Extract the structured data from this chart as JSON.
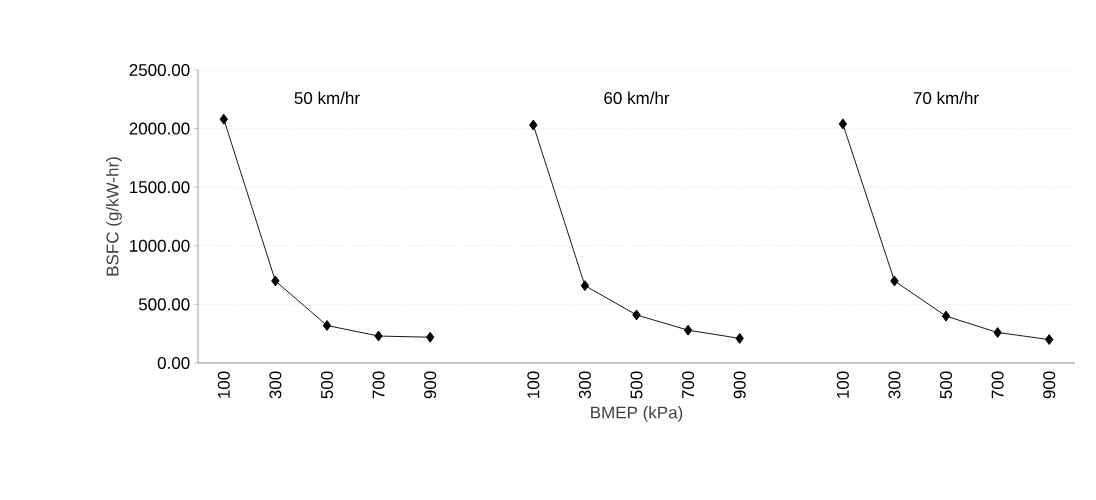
{
  "chart_data": {
    "type": "line",
    "xlabel": "BMEP (kPa)",
    "ylabel": "BSFC (g/kW-hr)",
    "categories": [
      "100",
      "300",
      "500",
      "700",
      "900",
      null,
      "100",
      "300",
      "500",
      "700",
      "900",
      null,
      "100",
      "300",
      "500",
      "700",
      "900"
    ],
    "series": [
      {
        "color": "#000000",
        "values": [
          2080,
          700,
          320,
          230,
          220,
          null,
          2030,
          660,
          410,
          280,
          210,
          null,
          2040,
          700,
          400,
          260,
          200
        ]
      }
    ],
    "ylim": [
      0,
      2500
    ],
    "yticks": [
      {
        "value": 0,
        "label": "0.00"
      },
      {
        "value": 500,
        "label": "500.00"
      },
      {
        "value": 1000,
        "label": "1000.00"
      },
      {
        "value": 1500,
        "label": "1500.00"
      },
      {
        "value": 2000,
        "label": "2000.00"
      },
      {
        "value": 2500,
        "label": "2500.00"
      }
    ],
    "grid": "y",
    "marker": "diamond",
    "line_style": "solid",
    "annotations": [
      "50 km/hr",
      "60 km/hr",
      "70 km/hr"
    ]
  }
}
